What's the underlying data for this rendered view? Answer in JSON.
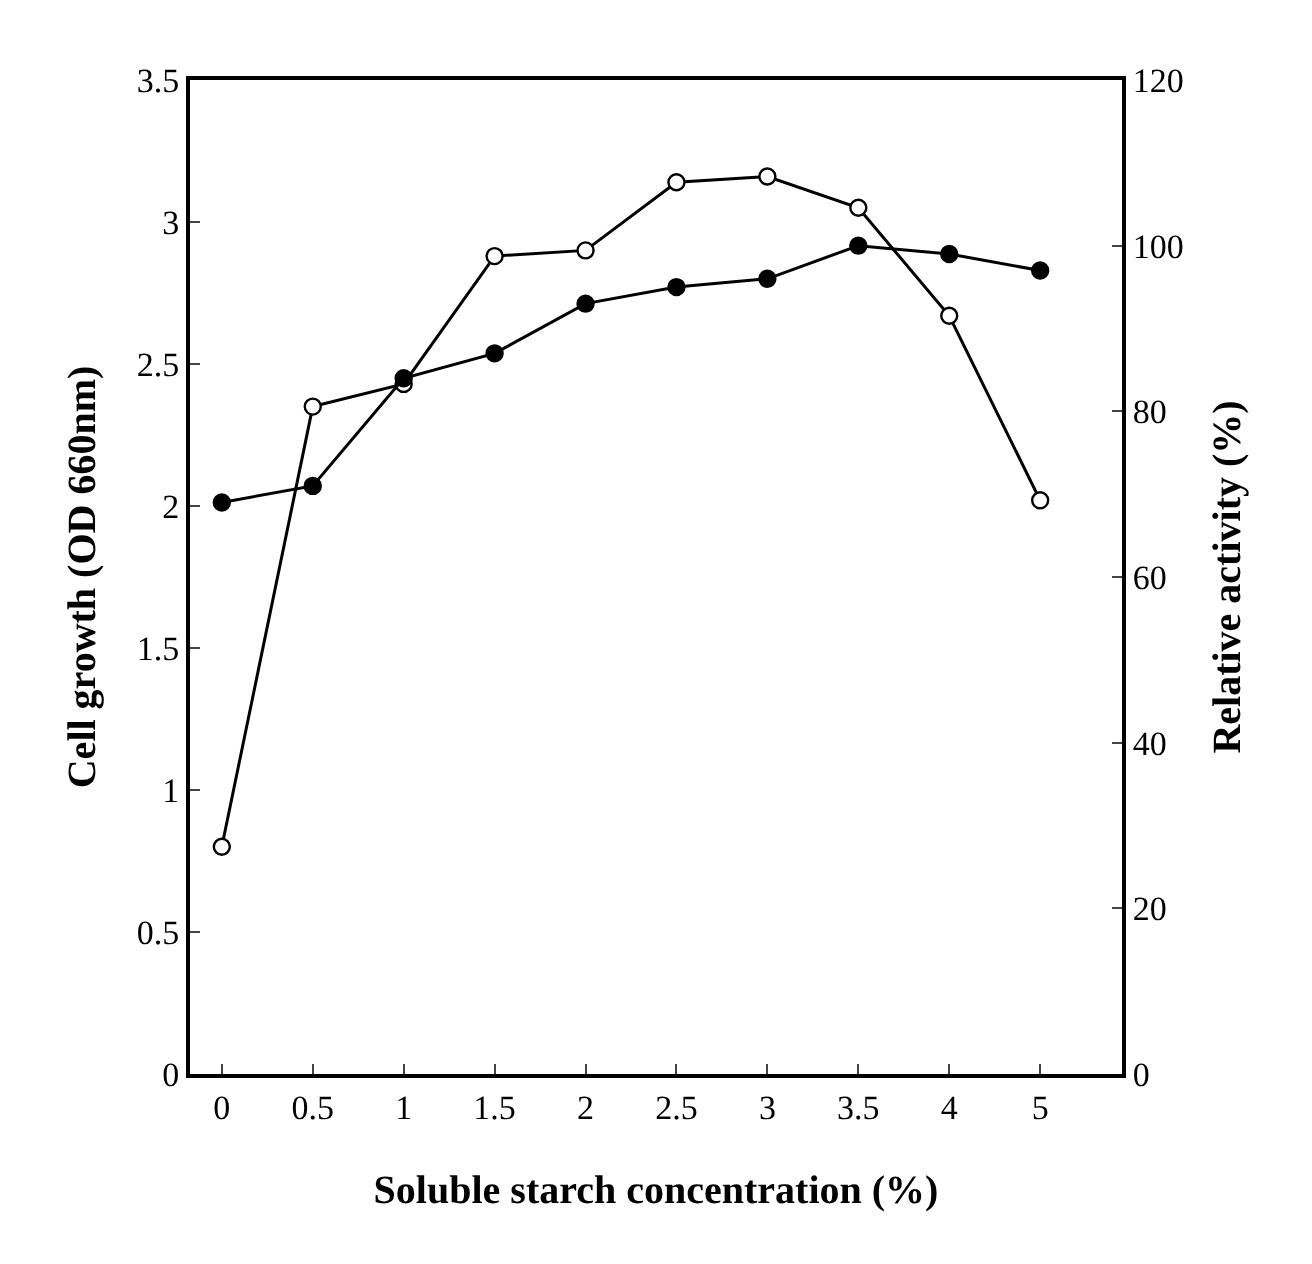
{
  "chart_data": {
    "type": "line",
    "xlabel": "Soluble starch concentration (%)",
    "ylabel": "Cell growth (OD 660nm)",
    "y2label": "Relative activity (%)",
    "categories": [
      "0",
      "0.5",
      "1",
      "1.5",
      "2",
      "2.5",
      "3",
      "3.5",
      "4",
      "5"
    ],
    "series": [
      {
        "color": "#000000",
        "marker": "circle-open",
        "values": [
          0.8,
          2.35,
          2.43,
          2.88,
          2.9,
          3.14,
          3.16,
          3.05,
          2.67,
          2.02
        ]
      },
      {
        "color": "#000000",
        "marker": "circle",
        "axis": "y2",
        "values": [
          69,
          71,
          84,
          87,
          93,
          95,
          96,
          100,
          99,
          97
        ]
      }
    ],
    "ylim": [
      0,
      3.5
    ],
    "yticks": [
      0,
      0.5,
      1,
      1.5,
      2,
      2.5,
      3,
      3.5
    ],
    "y2lim": [
      0,
      120
    ],
    "y2ticks": [
      0,
      20,
      40,
      60,
      80,
      100,
      120
    ],
    "legend": false,
    "line_style": "solid"
  }
}
